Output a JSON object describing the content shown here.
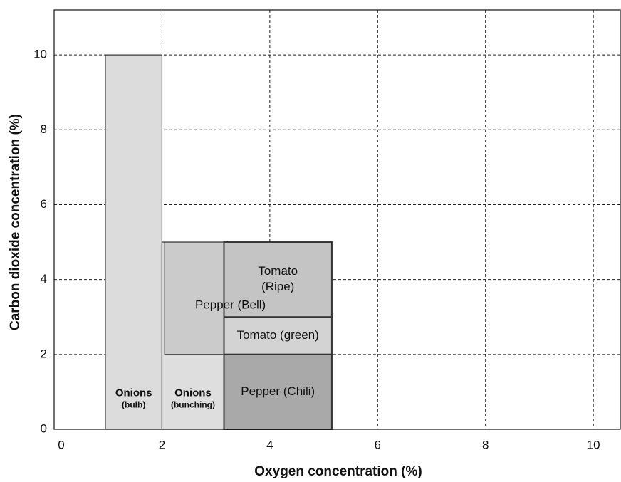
{
  "chart_data": {
    "type": "range",
    "x_label": "Oxygen concentration (%)",
    "y_label": "Carbon dioxide concentration (%)",
    "xlim": [
      0,
      10.5
    ],
    "xticks": [
      0,
      2,
      4,
      6,
      8,
      10
    ],
    "ylim": [
      0,
      11.2
    ],
    "yticks": [
      0,
      2,
      4,
      6,
      8,
      10
    ],
    "grid": true,
    "regions": [
      {
        "label_lines": [
          "Onions",
          "(bulb)"
        ],
        "x": [
          0.95,
          2
        ],
        "y": [
          0,
          10
        ],
        "color": "#dcdcdc"
      },
      {
        "label_lines": [
          "Onions",
          "(bunching)"
        ],
        "x": [
          2,
          3.15
        ],
        "y": [
          0,
          5
        ],
        "color": "#dedede"
      },
      {
        "label_lines": [
          "Pepper (Bell)"
        ],
        "x": [
          2.05,
          5.15
        ],
        "y": [
          2,
          5
        ],
        "color": "#cbcbcb"
      },
      {
        "label_lines": [
          "Tomato (green)"
        ],
        "x": [
          3.15,
          5.15
        ],
        "y": [
          2,
          3
        ],
        "color": "#d3d3d3"
      },
      {
        "label_lines": [
          "Tomato",
          "(Ripe)"
        ],
        "x": [
          3.15,
          5.15
        ],
        "y": [
          3,
          5
        ],
        "color": "#c4c4c4"
      },
      {
        "label_lines": [
          "Pepper (Chili)"
        ],
        "x": [
          3.15,
          5.15
        ],
        "y": [
          0,
          2
        ],
        "color": "#a9a9a9"
      }
    ]
  }
}
